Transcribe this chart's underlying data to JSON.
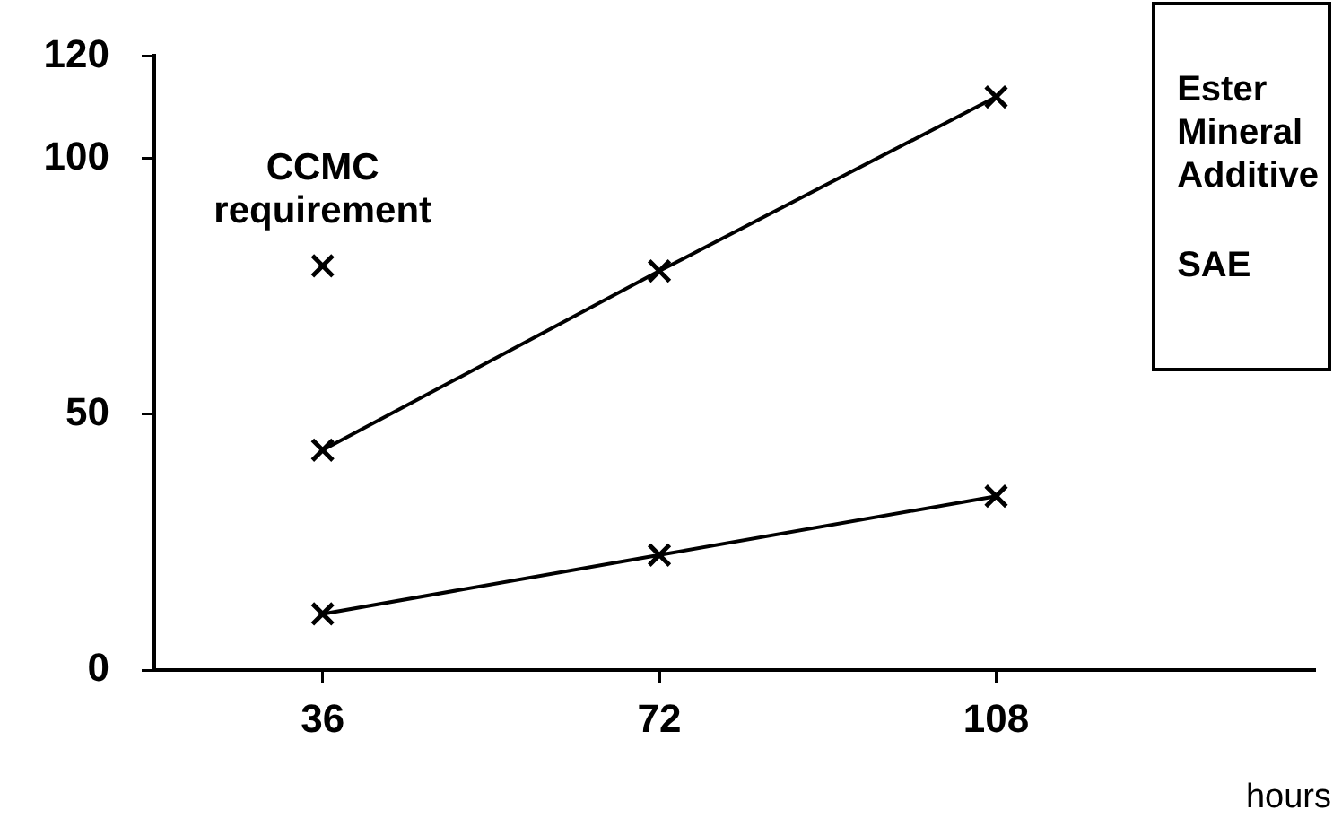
{
  "chart_data": {
    "type": "line",
    "xlabel": "hours",
    "x": [
      36,
      72,
      108
    ],
    "series": [
      {
        "color": "#000000",
        "values": [
          43,
          78,
          112
        ]
      },
      {
        "color": "#000000",
        "values": [
          11,
          22.5,
          34
        ]
      },
      {
        "name": "CCMC requirement",
        "type": "scatter",
        "color": "#000000",
        "x": [
          36
        ],
        "values": [
          79
        ]
      }
    ],
    "xlim": [
      18,
      142
    ],
    "xticks": [
      36,
      72,
      108
    ],
    "ylim": [
      0,
      120
    ],
    "yticks": [
      0,
      50,
      100,
      120
    ],
    "annotations": [
      "Ester",
      "Mineral",
      "Additive",
      "SAE"
    ],
    "grid": false,
    "legend": false,
    "marker": "cross",
    "line_style": "solid"
  }
}
